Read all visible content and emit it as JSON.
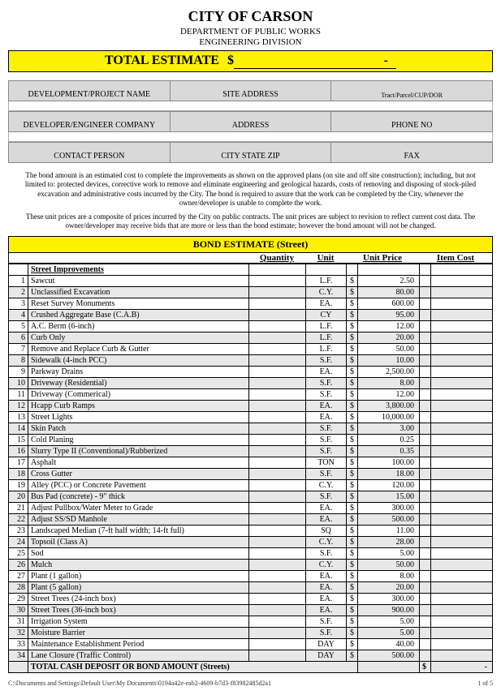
{
  "header": {
    "city": "CITY OF CARSON",
    "dept": "DEPARTMENT OF PUBLIC WORKS",
    "div": "ENGINEERING DIVISION"
  },
  "total_estimate": {
    "label": "TOTAL ESTIMATE",
    "currency": "$",
    "value": "-"
  },
  "info_labels": {
    "dev_project": "DEVELOPMENT/PROJECT NAME",
    "site_addr": "SITE ADDRESS",
    "tract": "Tract/Parcel/CUP/DOR",
    "dev_company": "DEVELOPER/ENGINEER COMPANY",
    "address": "ADDRESS",
    "phone": "PHONE NO",
    "contact": "CONTACT PERSON",
    "city_state_zip": "CITY STATE ZIP",
    "fax": "FAX"
  },
  "disclaimer1": "The bond amount is an estimated cost to complete the improvements as shown on the approved plans (on site and off site construction); including, but not limited to: protected devices, corrective work to remove and eliminate engineering and geological hazards, costs of removing and disposing of stock-piled excavation and administrative costs incurred by the City.  The bond is required to assure that the work can be completed by the City, whenever the owner/developer is unable to complete the work.",
  "disclaimer2": "These unit prices are a composite of prices incurred by the City on public contracts.  The unit prices are subject to revision to reflect current cost data. The owner/developer may receive bids that are more or less than the bond estimate; however the bond amount will not be changed.",
  "section_title": "BOND ESTIMATE (Street)",
  "cols": {
    "qty": "Quantity",
    "unit": "Unit",
    "price": "Unit Price",
    "cost": "Item Cost"
  },
  "subhead": "Street Improvements",
  "currency": "$",
  "items": [
    {
      "n": 1,
      "desc": "Sawcut",
      "unit": "L.F.",
      "price": "2.50"
    },
    {
      "n": 2,
      "desc": "Unclassified Excavation",
      "unit": "C.Y.",
      "price": "80.00",
      "shade": true
    },
    {
      "n": 3,
      "desc": "Reset Survey Monuments",
      "unit": "EA.",
      "price": "600.00"
    },
    {
      "n": 4,
      "desc": "Crushed Aggregate Base (C.A.B)",
      "unit": "CY",
      "price": "95.00",
      "shade": true
    },
    {
      "n": 5,
      "desc": "A.C. Berm (6-inch)",
      "unit": "L.F.",
      "price": "12.00"
    },
    {
      "n": 6,
      "desc": "Curb Only",
      "unit": "L.F.",
      "price": "20.00",
      "shade": true
    },
    {
      "n": 7,
      "desc": "Remove and Replace Curb & Gutter",
      "unit": "L.F.",
      "price": "50.00"
    },
    {
      "n": 8,
      "desc": "Sidewalk (4-inch PCC)",
      "unit": "S.F.",
      "price": "10.00",
      "shade": true
    },
    {
      "n": 9,
      "desc": "Parkway Drains",
      "unit": "EA.",
      "price": "2,500.00"
    },
    {
      "n": 10,
      "desc": "Driveway (Residential)",
      "unit": "S.F.",
      "price": "8.00",
      "shade": true
    },
    {
      "n": 11,
      "desc": "Driveway (Commerical)",
      "unit": "S.F.",
      "price": "12.00"
    },
    {
      "n": 12,
      "desc": "Hcapp Curb Ramps",
      "unit": "EA.",
      "price": "3,800.00",
      "shade": true
    },
    {
      "n": 13,
      "desc": "Street Lights",
      "unit": "EA.",
      "price": "10,000.00"
    },
    {
      "n": 14,
      "desc": "Skin Patch",
      "unit": "S.F.",
      "price": "3.00",
      "shade": true
    },
    {
      "n": 15,
      "desc": "Cold Planing",
      "unit": "S.F.",
      "price": "0.25"
    },
    {
      "n": 16,
      "desc": "Slurry Type II (Conventional)/Rubberized",
      "unit": "S.F.",
      "price": "0.35",
      "shade": true
    },
    {
      "n": 17,
      "desc": "Asphalt",
      "unit": "TON",
      "price": "100.00"
    },
    {
      "n": 18,
      "desc": "Cross Gutter",
      "unit": "S.F.",
      "price": "18.00",
      "shade": true
    },
    {
      "n": 19,
      "desc": "Alley (PCC) or Concrete Pavement",
      "unit": "C.Y.",
      "price": "120.00"
    },
    {
      "n": 20,
      "desc": "Bus Pad (concrete) - 9\" thick",
      "unit": "S.F.",
      "price": "15.00",
      "shade": true
    },
    {
      "n": 21,
      "desc": "Adjust Pullbox/Water Meter to Grade",
      "unit": "EA.",
      "price": "300.00"
    },
    {
      "n": 22,
      "desc": "Adjust SS/SD Manhole",
      "unit": "EA.",
      "price": "500.00",
      "shade": true
    },
    {
      "n": 23,
      "desc": "Landscaped Median (7-ft half width; 14-ft full)",
      "unit": "SQ",
      "price": "11.00"
    },
    {
      "n": 24,
      "desc": "Topsoil (Class A)",
      "unit": "C.Y.",
      "price": "28.00",
      "shade": true
    },
    {
      "n": 25,
      "desc": "Sod",
      "unit": "S.F.",
      "price": "5.00"
    },
    {
      "n": 26,
      "desc": "Mulch",
      "unit": "C.Y.",
      "price": "50.00",
      "shade": true
    },
    {
      "n": 27,
      "desc": "Plant (1 gallon)",
      "unit": "EA.",
      "price": "8.00"
    },
    {
      "n": 28,
      "desc": "Plant (5 gallon)",
      "unit": "EA.",
      "price": "20.00",
      "shade": true
    },
    {
      "n": 29,
      "desc": "Street Trees (24-inch box)",
      "unit": "EA.",
      "price": "300.00"
    },
    {
      "n": 30,
      "desc": "Street Trees (36-inch box)",
      "unit": "EA.",
      "price": "900.00",
      "shade": true
    },
    {
      "n": 31,
      "desc": "Irrigation System",
      "unit": "S.F.",
      "price": "5.00"
    },
    {
      "n": 32,
      "desc": "Moisture Barrier",
      "unit": "S.F.",
      "price": "5.00",
      "shade": true
    },
    {
      "n": 33,
      "desc": "Maintenance Establishment Period",
      "unit": "DAY",
      "price": "40.00"
    },
    {
      "n": 34,
      "desc": "Lane Closure (Traffic Control)",
      "unit": "DAY",
      "price": "500.00",
      "shade": true
    }
  ],
  "total_row": {
    "label": "TOTAL CASH DEPOSIT OR BOND AMOUNT (Streets)",
    "currency": "$",
    "value": "-"
  },
  "footer": {
    "path": "C:\\Documents and Settings\\Default User\\My Documents\\0194a42e-eab2-4609-b7d3-f83982485d2a1",
    "page": "1 of 5"
  },
  "colors": {
    "highlight": "#fff200",
    "shade": "#e8e8e8",
    "header_gray": "#d9d9d9"
  }
}
